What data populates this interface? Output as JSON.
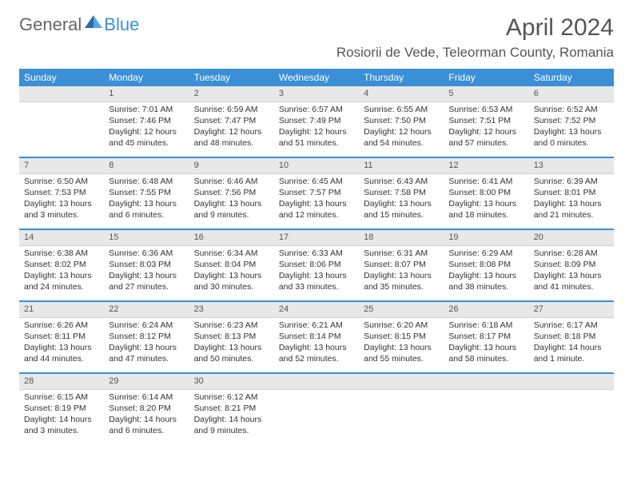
{
  "brand": {
    "left": "General",
    "right": "Blue"
  },
  "title": {
    "monthyear": "April 2024",
    "location": "Rosiorii de Vede, Teleorman County, Romania"
  },
  "colors": {
    "accent": "#3a8fd6",
    "header_text": "#ffffff",
    "daybar": "#e8e8e8",
    "text": "#333333"
  },
  "dayHeaders": [
    "Sunday",
    "Monday",
    "Tuesday",
    "Wednesday",
    "Thursday",
    "Friday",
    "Saturday"
  ],
  "weeks": [
    [
      {
        "n": "",
        "sr": "",
        "ss": "",
        "dl": ""
      },
      {
        "n": "1",
        "sr": "Sunrise: 7:01 AM",
        "ss": "Sunset: 7:46 PM",
        "dl": "Daylight: 12 hours and 45 minutes."
      },
      {
        "n": "2",
        "sr": "Sunrise: 6:59 AM",
        "ss": "Sunset: 7:47 PM",
        "dl": "Daylight: 12 hours and 48 minutes."
      },
      {
        "n": "3",
        "sr": "Sunrise: 6:57 AM",
        "ss": "Sunset: 7:49 PM",
        "dl": "Daylight: 12 hours and 51 minutes."
      },
      {
        "n": "4",
        "sr": "Sunrise: 6:55 AM",
        "ss": "Sunset: 7:50 PM",
        "dl": "Daylight: 12 hours and 54 minutes."
      },
      {
        "n": "5",
        "sr": "Sunrise: 6:53 AM",
        "ss": "Sunset: 7:51 PM",
        "dl": "Daylight: 12 hours and 57 minutes."
      },
      {
        "n": "6",
        "sr": "Sunrise: 6:52 AM",
        "ss": "Sunset: 7:52 PM",
        "dl": "Daylight: 13 hours and 0 minutes."
      }
    ],
    [
      {
        "n": "7",
        "sr": "Sunrise: 6:50 AM",
        "ss": "Sunset: 7:53 PM",
        "dl": "Daylight: 13 hours and 3 minutes."
      },
      {
        "n": "8",
        "sr": "Sunrise: 6:48 AM",
        "ss": "Sunset: 7:55 PM",
        "dl": "Daylight: 13 hours and 6 minutes."
      },
      {
        "n": "9",
        "sr": "Sunrise: 6:46 AM",
        "ss": "Sunset: 7:56 PM",
        "dl": "Daylight: 13 hours and 9 minutes."
      },
      {
        "n": "10",
        "sr": "Sunrise: 6:45 AM",
        "ss": "Sunset: 7:57 PM",
        "dl": "Daylight: 13 hours and 12 minutes."
      },
      {
        "n": "11",
        "sr": "Sunrise: 6:43 AM",
        "ss": "Sunset: 7:58 PM",
        "dl": "Daylight: 13 hours and 15 minutes."
      },
      {
        "n": "12",
        "sr": "Sunrise: 6:41 AM",
        "ss": "Sunset: 8:00 PM",
        "dl": "Daylight: 13 hours and 18 minutes."
      },
      {
        "n": "13",
        "sr": "Sunrise: 6:39 AM",
        "ss": "Sunset: 8:01 PM",
        "dl": "Daylight: 13 hours and 21 minutes."
      }
    ],
    [
      {
        "n": "14",
        "sr": "Sunrise: 6:38 AM",
        "ss": "Sunset: 8:02 PM",
        "dl": "Daylight: 13 hours and 24 minutes."
      },
      {
        "n": "15",
        "sr": "Sunrise: 6:36 AM",
        "ss": "Sunset: 8:03 PM",
        "dl": "Daylight: 13 hours and 27 minutes."
      },
      {
        "n": "16",
        "sr": "Sunrise: 6:34 AM",
        "ss": "Sunset: 8:04 PM",
        "dl": "Daylight: 13 hours and 30 minutes."
      },
      {
        "n": "17",
        "sr": "Sunrise: 6:33 AM",
        "ss": "Sunset: 8:06 PM",
        "dl": "Daylight: 13 hours and 33 minutes."
      },
      {
        "n": "18",
        "sr": "Sunrise: 6:31 AM",
        "ss": "Sunset: 8:07 PM",
        "dl": "Daylight: 13 hours and 35 minutes."
      },
      {
        "n": "19",
        "sr": "Sunrise: 6:29 AM",
        "ss": "Sunset: 8:08 PM",
        "dl": "Daylight: 13 hours and 38 minutes."
      },
      {
        "n": "20",
        "sr": "Sunrise: 6:28 AM",
        "ss": "Sunset: 8:09 PM",
        "dl": "Daylight: 13 hours and 41 minutes."
      }
    ],
    [
      {
        "n": "21",
        "sr": "Sunrise: 6:26 AM",
        "ss": "Sunset: 8:11 PM",
        "dl": "Daylight: 13 hours and 44 minutes."
      },
      {
        "n": "22",
        "sr": "Sunrise: 6:24 AM",
        "ss": "Sunset: 8:12 PM",
        "dl": "Daylight: 13 hours and 47 minutes."
      },
      {
        "n": "23",
        "sr": "Sunrise: 6:23 AM",
        "ss": "Sunset: 8:13 PM",
        "dl": "Daylight: 13 hours and 50 minutes."
      },
      {
        "n": "24",
        "sr": "Sunrise: 6:21 AM",
        "ss": "Sunset: 8:14 PM",
        "dl": "Daylight: 13 hours and 52 minutes."
      },
      {
        "n": "25",
        "sr": "Sunrise: 6:20 AM",
        "ss": "Sunset: 8:15 PM",
        "dl": "Daylight: 13 hours and 55 minutes."
      },
      {
        "n": "26",
        "sr": "Sunrise: 6:18 AM",
        "ss": "Sunset: 8:17 PM",
        "dl": "Daylight: 13 hours and 58 minutes."
      },
      {
        "n": "27",
        "sr": "Sunrise: 6:17 AM",
        "ss": "Sunset: 8:18 PM",
        "dl": "Daylight: 14 hours and 1 minute."
      }
    ],
    [
      {
        "n": "28",
        "sr": "Sunrise: 6:15 AM",
        "ss": "Sunset: 8:19 PM",
        "dl": "Daylight: 14 hours and 3 minutes."
      },
      {
        "n": "29",
        "sr": "Sunrise: 6:14 AM",
        "ss": "Sunset: 8:20 PM",
        "dl": "Daylight: 14 hours and 6 minutes."
      },
      {
        "n": "30",
        "sr": "Sunrise: 6:12 AM",
        "ss": "Sunset: 8:21 PM",
        "dl": "Daylight: 14 hours and 9 minutes."
      },
      {
        "n": "",
        "sr": "",
        "ss": "",
        "dl": ""
      },
      {
        "n": "",
        "sr": "",
        "ss": "",
        "dl": ""
      },
      {
        "n": "",
        "sr": "",
        "ss": "",
        "dl": ""
      },
      {
        "n": "",
        "sr": "",
        "ss": "",
        "dl": ""
      }
    ]
  ]
}
